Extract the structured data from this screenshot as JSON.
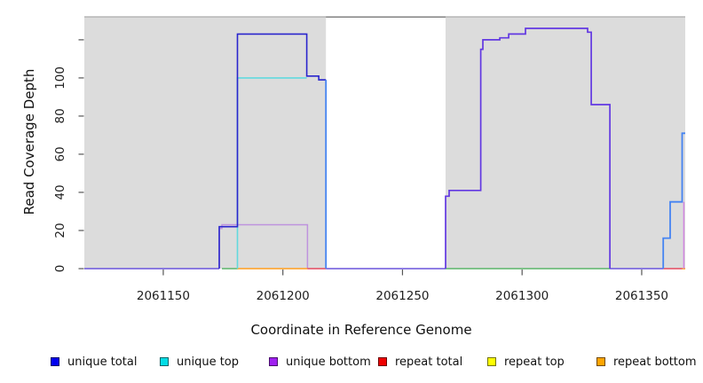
{
  "figure": {
    "xlabel": "Coordinate in Reference Genome",
    "ylabel": "Read Coverage Depth",
    "background": "#ffffff",
    "shaded_band_color": "#dcdcdc",
    "gap_border_color": "#8a8a8a"
  },
  "chart_data": {
    "type": "line",
    "subtype": "step-coverage-depth",
    "title": "",
    "xlabel": "Coordinate in Reference Genome",
    "ylabel": "Read Coverage Depth",
    "xlim": [
      2061117,
      2061368.2
    ],
    "ylim": [
      0,
      132.5
    ],
    "x_ticks": [
      2061150,
      2061200,
      2061250,
      2061300,
      2061350
    ],
    "y_ticks": [
      0,
      20,
      40,
      60,
      80,
      100,
      120
    ],
    "y_tick_labels": [
      "0",
      "20",
      "40",
      "60",
      "80",
      "100",
      ""
    ],
    "grid": false,
    "legend_position": "bottom",
    "shaded_regions": [
      {
        "name": "uniquely-mappable-region-left",
        "x0": 2061117,
        "x1": 2061218,
        "color": "#dcdcdc"
      },
      {
        "name": "uniquely-mappable-region-right",
        "x0": 2061268,
        "x1": 2061368.2,
        "color": "#dcdcdc"
      }
    ],
    "series": [
      {
        "name": "baseline-left",
        "color": "#6A54DC",
        "width": 1.5,
        "points": [
          [
            2061117,
            0
          ],
          [
            2061173.4,
            0
          ]
        ]
      },
      {
        "name": "baseline-gap",
        "color": "#6A54DC",
        "width": 1.5,
        "points": [
          [
            2061218,
            0
          ],
          [
            2061268,
            0
          ]
        ]
      },
      {
        "name": "baseline-right-mid",
        "color": "#6A54DC",
        "width": 1.5,
        "points": [
          [
            2061336.7,
            0
          ],
          [
            2061359,
            0
          ]
        ]
      },
      {
        "name": "zero-overlap-green-left",
        "color": "#5BB469",
        "width": 1.4,
        "points": [
          [
            2061174.5,
            0
          ],
          [
            2061181,
            0
          ]
        ]
      },
      {
        "name": "zero-overlap-green-right",
        "color": "#5BB469",
        "width": 1.4,
        "points": [
          [
            2061268,
            0
          ],
          [
            2061336.7,
            0
          ]
        ]
      },
      {
        "name": "unique-bottom-left",
        "color": "#BE93DE",
        "width": 1.5,
        "points": [
          [
            2061173.4,
            0
          ],
          [
            2061173.4,
            21
          ],
          [
            2061174.5,
            21
          ],
          [
            2061174.5,
            23
          ],
          [
            2061210.3,
            23
          ],
          [
            2061210.3,
            0
          ]
        ]
      },
      {
        "name": "repeat-bottom-left",
        "color": "#FF9D1E",
        "width": 1.6,
        "points": [
          [
            2061181,
            0
          ],
          [
            2061210.3,
            0
          ]
        ]
      },
      {
        "name": "repeat-total-left",
        "color": "#E4485E",
        "width": 1.5,
        "points": [
          [
            2061210.3,
            0
          ],
          [
            2061218,
            0
          ]
        ]
      },
      {
        "name": "unique-top-left",
        "color": "#62D9DE",
        "width": 1.6,
        "points": [
          [
            2061181,
            0
          ],
          [
            2061181,
            100
          ],
          [
            2061210,
            100
          ]
        ]
      },
      {
        "name": "unique-total-left",
        "color": "#2A25CD",
        "width": 1.6,
        "points": [
          [
            2061173.4,
            0
          ],
          [
            2061173.4,
            22
          ],
          [
            2061181,
            22
          ],
          [
            2061181,
            123
          ],
          [
            2061210,
            123
          ],
          [
            2061210,
            101
          ],
          [
            2061215,
            101
          ],
          [
            2061215,
            99
          ],
          [
            2061218,
            99
          ]
        ]
      },
      {
        "name": "unique-total-left-drop",
        "color": "#4584F2",
        "width": 1.8,
        "points": [
          [
            2061218,
            99
          ],
          [
            2061218,
            0
          ]
        ]
      },
      {
        "name": "unique-total-mid",
        "color": "#6238E2",
        "width": 1.7,
        "points": [
          [
            2061268,
            0
          ],
          [
            2061268,
            38
          ],
          [
            2061269.5,
            38
          ],
          [
            2061269.5,
            41
          ],
          [
            2061282.7,
            41
          ],
          [
            2061282.7,
            115
          ],
          [
            2061283.6,
            115
          ],
          [
            2061283.6,
            120
          ],
          [
            2061290.7,
            120
          ],
          [
            2061290.7,
            121
          ],
          [
            2061294.4,
            121
          ],
          [
            2061294.4,
            123
          ],
          [
            2061301.4,
            123
          ],
          [
            2061301.4,
            126
          ],
          [
            2061327.4,
            126
          ],
          [
            2061327.4,
            124
          ],
          [
            2061328.9,
            124
          ],
          [
            2061328.9,
            86
          ],
          [
            2061336.7,
            86
          ],
          [
            2061336.7,
            0
          ]
        ]
      },
      {
        "name": "repeat-total-right",
        "color": "#E4485E",
        "width": 1.5,
        "points": [
          [
            2061359,
            0
          ],
          [
            2061366.9,
            0
          ]
        ]
      },
      {
        "name": "repeat-bottom-right",
        "color": "#FF9D1E",
        "width": 1.6,
        "points": [
          [
            2061366.9,
            0
          ],
          [
            2061368.2,
            0
          ]
        ]
      },
      {
        "name": "unique-total-right",
        "color": "#4584F2",
        "width": 1.8,
        "points": [
          [
            2061359,
            0
          ],
          [
            2061359,
            16
          ],
          [
            2061361.9,
            16
          ],
          [
            2061361.9,
            35
          ],
          [
            2061366.9,
            35
          ],
          [
            2061366.9,
            71
          ],
          [
            2061368.2,
            71
          ]
        ]
      },
      {
        "name": "unique-bottom-right",
        "color": "#D284E0",
        "width": 1.5,
        "points": [
          [
            2061367.6,
            0
          ],
          [
            2061367.6,
            35
          ]
        ]
      }
    ],
    "legend": [
      {
        "label": "unique total",
        "color": "#0000EE"
      },
      {
        "label": "unique top",
        "color": "#00DDE6"
      },
      {
        "label": "unique bottom",
        "color": "#A020F0"
      },
      {
        "label": "repeat total",
        "color": "#EE0000"
      },
      {
        "label": "repeat top",
        "color": "#FFFF00"
      },
      {
        "label": "repeat bottom",
        "color": "#FFA500"
      }
    ]
  }
}
